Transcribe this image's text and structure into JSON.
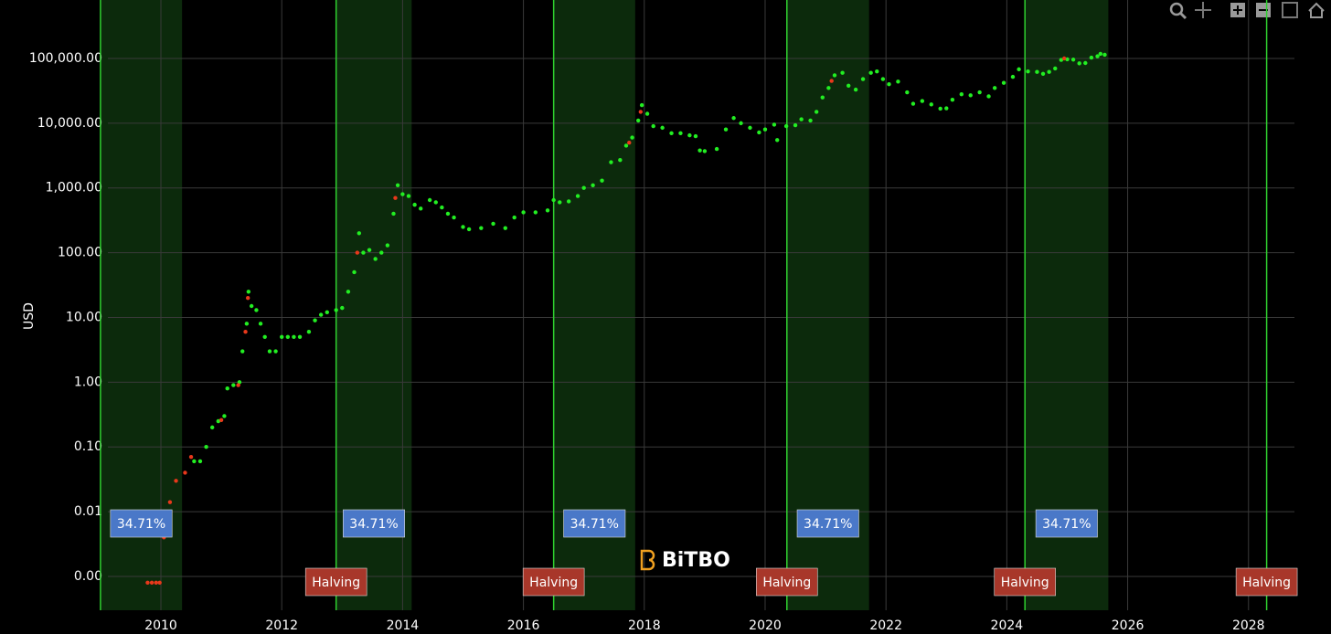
{
  "chart_data": {
    "type": "scatter",
    "y_label": "USD",
    "watermark": "BiTBO",
    "ylog": true,
    "grid": true,
    "xlim": [
      2008.85,
      2028.76
    ],
    "xticks": [
      2010,
      2012,
      2014,
      2016,
      2018,
      2020,
      2022,
      2024,
      2026,
      2028
    ],
    "ylim": [
      0.0003,
      800000
    ],
    "yticks": [
      {
        "value": 0.001,
        "label": "0.00"
      },
      {
        "value": 0.01,
        "label": "0.01"
      },
      {
        "value": 0.1,
        "label": "0.10"
      },
      {
        "value": 1,
        "label": "1.00"
      },
      {
        "value": 10,
        "label": "10.00"
      },
      {
        "value": 100,
        "label": "100.00"
      },
      {
        "value": 1000,
        "label": "1,000.00"
      },
      {
        "value": 10000,
        "label": "10,000.00"
      },
      {
        "value": 100000,
        "label": "100,000.00"
      }
    ],
    "halving_lines": [
      2009.0,
      2012.9,
      2016.5,
      2020.36,
      2024.3,
      2028.3
    ],
    "halving_labels": [
      null,
      "Halving",
      "Halving",
      "Halving",
      "Halving",
      "Halving"
    ],
    "line_color": "#2fd02f",
    "bands": [
      {
        "start": 2009.0,
        "end": 2010.35,
        "label": "34.71%"
      },
      {
        "start": 2012.9,
        "end": 2014.15,
        "label": "34.71%"
      },
      {
        "start": 2016.5,
        "end": 2017.85,
        "label": "34.71%"
      },
      {
        "start": 2020.36,
        "end": 2021.72,
        "label": "34.71%"
      },
      {
        "start": 2024.3,
        "end": 2025.68,
        "label": "34.71%"
      }
    ],
    "band_color": "#0c2a0c",
    "series": [
      {
        "color": "#22ee22",
        "x": [
          2010.55,
          2010.65,
          2010.75,
          2010.85,
          2010.95,
          2011.05,
          2011.1,
          2011.2,
          2011.3,
          2011.35,
          2011.42,
          2011.45,
          2011.5,
          2011.58,
          2011.65,
          2011.72,
          2011.8,
          2011.9,
          2012.0,
          2012.1,
          2012.2,
          2012.3,
          2012.45,
          2012.55,
          2012.65,
          2012.75,
          2012.9,
          2013.0,
          2013.1,
          2013.2,
          2013.28,
          2013.35,
          2013.45,
          2013.55,
          2013.65,
          2013.75,
          2013.85,
          2013.92,
          2014.0,
          2014.1,
          2014.2,
          2014.3,
          2014.45,
          2014.55,
          2014.65,
          2014.75,
          2014.85,
          2015.0,
          2015.1,
          2015.3,
          2015.5,
          2015.7,
          2015.85,
          2016.0,
          2016.2,
          2016.4,
          2016.5,
          2016.6,
          2016.75,
          2016.9,
          2017.0,
          2017.15,
          2017.3,
          2017.45,
          2017.6,
          2017.7,
          2017.8,
          2017.9,
          2017.96,
          2018.05,
          2018.15,
          2018.3,
          2018.45,
          2018.6,
          2018.75,
          2018.85,
          2018.92,
          2019.0,
          2019.2,
          2019.35,
          2019.48,
          2019.6,
          2019.75,
          2019.9,
          2020.0,
          2020.15,
          2020.2,
          2020.35,
          2020.5,
          2020.6,
          2020.75,
          2020.85,
          2020.95,
          2021.05,
          2021.15,
          2021.28,
          2021.38,
          2021.5,
          2021.62,
          2021.75,
          2021.85,
          2021.95,
          2022.05,
          2022.2,
          2022.35,
          2022.45,
          2022.6,
          2022.75,
          2022.9,
          2023.0,
          2023.1,
          2023.25,
          2023.4,
          2023.55,
          2023.7,
          2023.8,
          2023.95,
          2024.1,
          2024.2,
          2024.35,
          2024.5,
          2024.6,
          2024.7,
          2024.8,
          2024.9,
          2025.0,
          2025.1,
          2025.2,
          2025.3,
          2025.4,
          2025.5,
          2025.55,
          2025.62
        ],
        "values": [
          0.06,
          0.06,
          0.1,
          0.2,
          0.25,
          0.3,
          0.8,
          0.9,
          1.0,
          3,
          8,
          25,
          15,
          13,
          8,
          5,
          3,
          3,
          5,
          5,
          5,
          5,
          6,
          9,
          11,
          12,
          13,
          14,
          25,
          50,
          200,
          100,
          110,
          80,
          100,
          130,
          400,
          1100,
          800,
          750,
          550,
          480,
          650,
          600,
          500,
          400,
          350,
          250,
          230,
          240,
          280,
          240,
          350,
          420,
          420,
          450,
          650,
          600,
          620,
          750,
          1000,
          1100,
          1300,
          2500,
          2700,
          4500,
          6000,
          11000,
          19000,
          14000,
          9000,
          8500,
          7000,
          7000,
          6500,
          6300,
          3800,
          3700,
          4000,
          8000,
          12000,
          10000,
          8500,
          7200,
          8000,
          9500,
          5500,
          9000,
          9300,
          11500,
          11000,
          15000,
          25000,
          35000,
          55000,
          60000,
          38000,
          33000,
          48000,
          60000,
          63000,
          48000,
          40000,
          44000,
          30000,
          20000,
          22000,
          19500,
          16800,
          17000,
          23000,
          28000,
          27000,
          30000,
          26000,
          35000,
          42000,
          52000,
          68000,
          63000,
          62000,
          58000,
          62000,
          70000,
          95000,
          97000,
          96000,
          84000,
          85000,
          103000,
          108000,
          118000,
          114000
        ]
      },
      {
        "color": "#e8381b",
        "x": [
          2009.78,
          2009.85,
          2009.92,
          2009.98,
          2010.05,
          2010.15,
          2010.25,
          2010.4,
          2010.5,
          2011.0,
          2011.28,
          2011.4,
          2011.44,
          2013.25,
          2013.88,
          2017.75,
          2017.94,
          2021.1,
          2024.95
        ],
        "values": [
          0.0008,
          0.0008,
          0.0008,
          0.0008,
          0.004,
          0.014,
          0.03,
          0.04,
          0.07,
          0.26,
          0.9,
          6,
          20,
          100,
          700,
          5000,
          15000,
          45000,
          100000
        ]
      }
    ]
  }
}
